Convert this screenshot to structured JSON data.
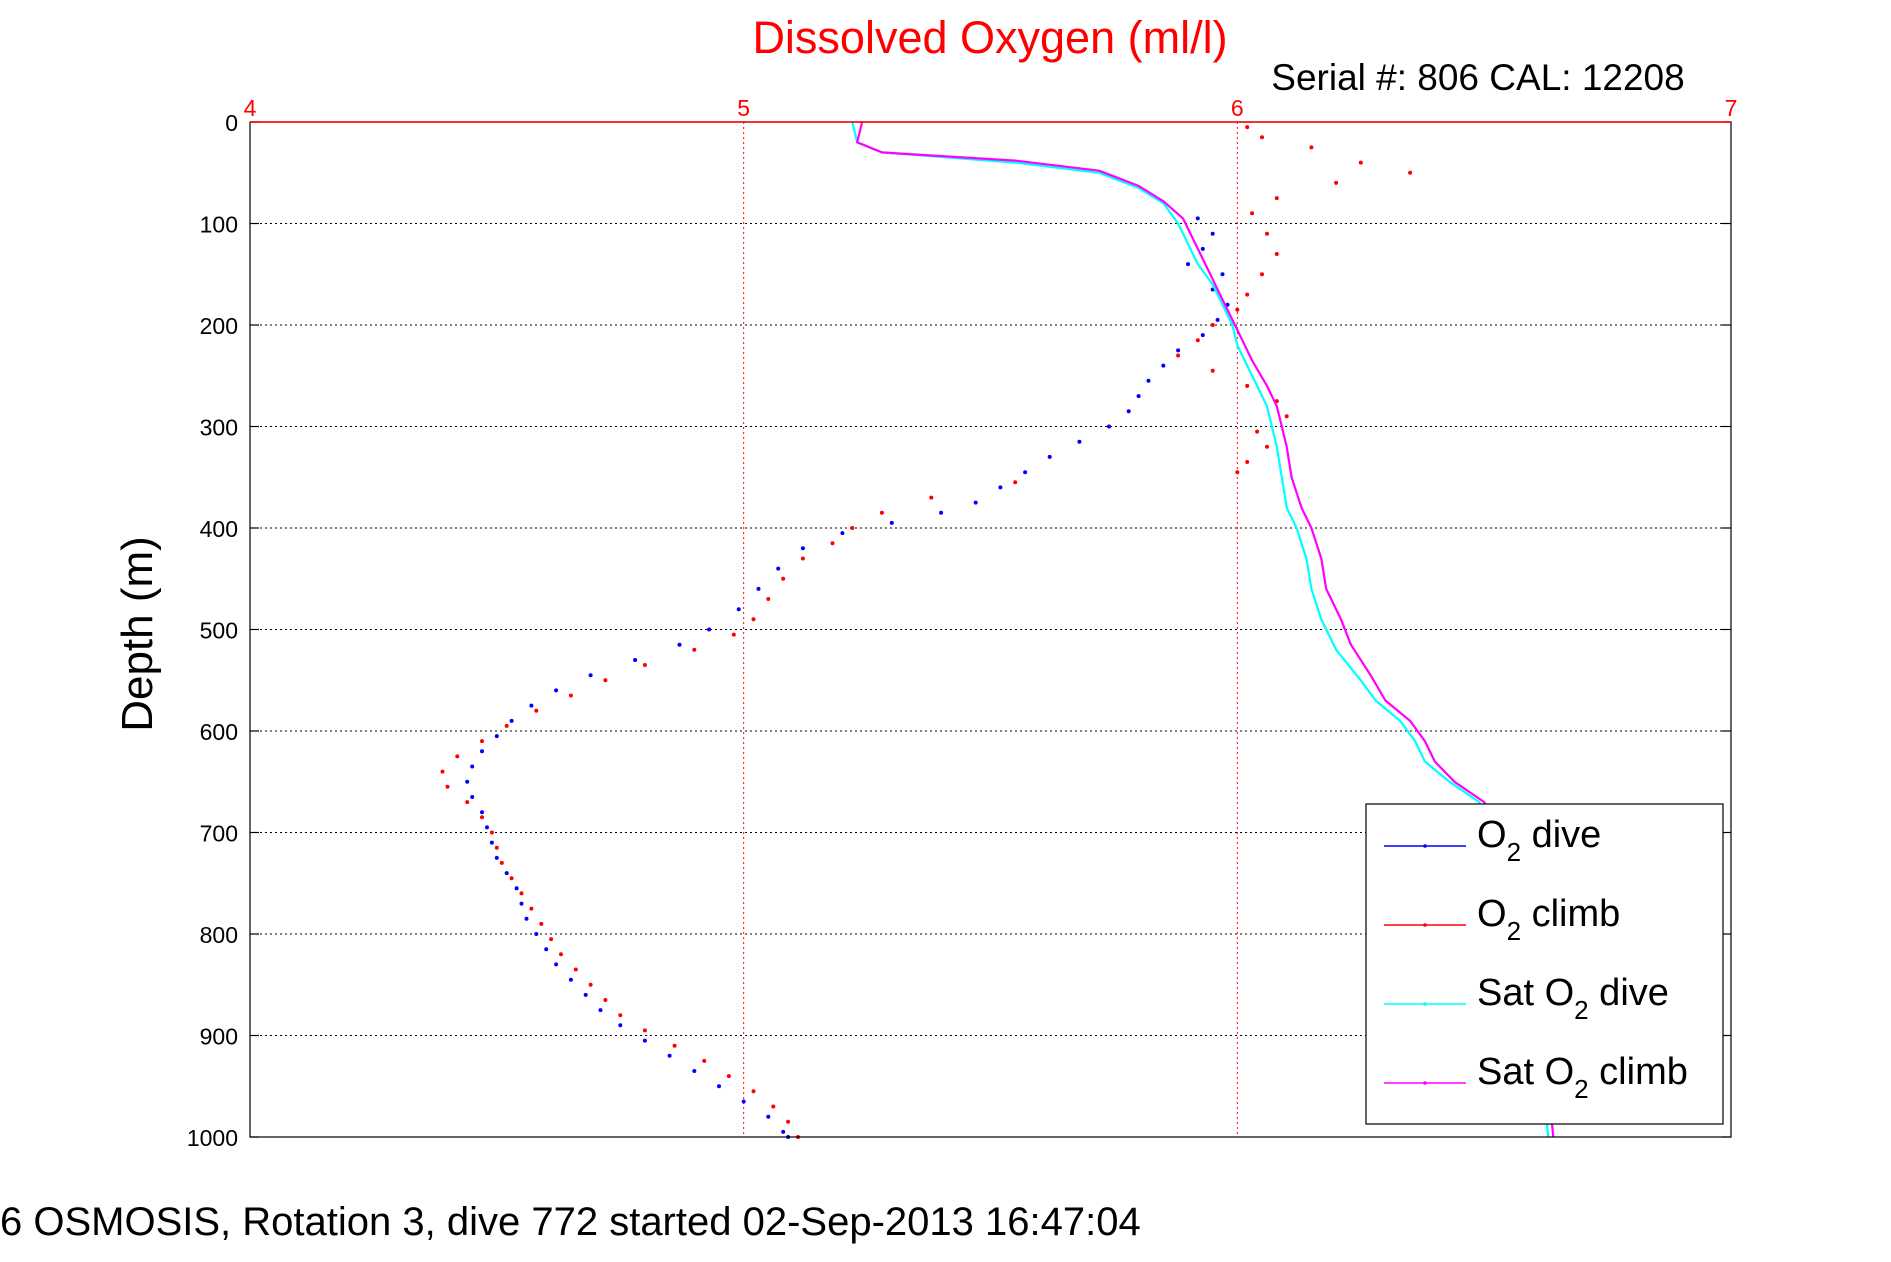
{
  "chart_data": {
    "type": "scatter",
    "title": "Dissolved Oxygen (ml/l)",
    "subtitle": "Serial #: 806  CAL: 12208",
    "ylabel": "Depth (m)",
    "xlim": [
      4,
      7
    ],
    "ylim": [
      0,
      1000
    ],
    "y_reversed": true,
    "x_axis_position": "top",
    "x_ticks": [
      "4",
      "5",
      "6",
      "7"
    ],
    "y_ticks": [
      "0",
      "100",
      "200",
      "300",
      "400",
      "500",
      "600",
      "700",
      "800",
      "900",
      "1000"
    ],
    "grid": true,
    "legend_position": "lower-right",
    "colors": {
      "title": "#ff0000",
      "x_axis": "#ff0000",
      "vgrid": "#ff0000",
      "hgrid": "#000000"
    },
    "series": [
      {
        "name": "O2 dive",
        "legend_main": "O",
        "legend_sub": "2",
        "legend_rest": " dive",
        "color": "#0000ff",
        "style": "markers",
        "points": [
          [
            5.92,
            95
          ],
          [
            5.95,
            110
          ],
          [
            5.93,
            125
          ],
          [
            5.9,
            140
          ],
          [
            5.97,
            150
          ],
          [
            5.95,
            165
          ],
          [
            5.98,
            180
          ],
          [
            5.96,
            195
          ],
          [
            5.93,
            210
          ],
          [
            5.88,
            225
          ],
          [
            5.85,
            240
          ],
          [
            5.82,
            255
          ],
          [
            5.8,
            270
          ],
          [
            5.78,
            285
          ],
          [
            5.74,
            300
          ],
          [
            5.68,
            315
          ],
          [
            5.62,
            330
          ],
          [
            5.57,
            345
          ],
          [
            5.52,
            360
          ],
          [
            5.47,
            375
          ],
          [
            5.4,
            385
          ],
          [
            5.3,
            395
          ],
          [
            5.2,
            405
          ],
          [
            5.12,
            420
          ],
          [
            5.07,
            440
          ],
          [
            5.03,
            460
          ],
          [
            4.99,
            480
          ],
          [
            4.93,
            500
          ],
          [
            4.87,
            515
          ],
          [
            4.78,
            530
          ],
          [
            4.69,
            545
          ],
          [
            4.62,
            560
          ],
          [
            4.57,
            575
          ],
          [
            4.53,
            590
          ],
          [
            4.5,
            605
          ],
          [
            4.47,
            620
          ],
          [
            4.45,
            635
          ],
          [
            4.44,
            650
          ],
          [
            4.45,
            665
          ],
          [
            4.47,
            680
          ],
          [
            4.48,
            695
          ],
          [
            4.49,
            710
          ],
          [
            4.5,
            725
          ],
          [
            4.52,
            740
          ],
          [
            4.54,
            755
          ],
          [
            4.55,
            770
          ],
          [
            4.56,
            785
          ],
          [
            4.58,
            800
          ],
          [
            4.6,
            815
          ],
          [
            4.62,
            830
          ],
          [
            4.65,
            845
          ],
          [
            4.68,
            860
          ],
          [
            4.71,
            875
          ],
          [
            4.75,
            890
          ],
          [
            4.8,
            905
          ],
          [
            4.85,
            920
          ],
          [
            4.9,
            935
          ],
          [
            4.95,
            950
          ],
          [
            5.0,
            965
          ],
          [
            5.05,
            980
          ],
          [
            5.08,
            995
          ],
          [
            5.09,
            1000
          ]
        ]
      },
      {
        "name": "O2 climb",
        "legend_main": "O",
        "legend_sub": "2",
        "legend_rest": " climb",
        "color": "#ff0000",
        "style": "markers",
        "points": [
          [
            6.02,
            5
          ],
          [
            6.05,
            15
          ],
          [
            6.15,
            25
          ],
          [
            6.25,
            40
          ],
          [
            6.35,
            50
          ],
          [
            6.2,
            60
          ],
          [
            6.08,
            75
          ],
          [
            6.03,
            90
          ],
          [
            6.06,
            110
          ],
          [
            6.08,
            130
          ],
          [
            6.05,
            150
          ],
          [
            6.02,
            170
          ],
          [
            6.0,
            185
          ],
          [
            5.95,
            200
          ],
          [
            5.92,
            215
          ],
          [
            5.88,
            230
          ],
          [
            5.95,
            245
          ],
          [
            6.02,
            260
          ],
          [
            6.08,
            275
          ],
          [
            6.1,
            290
          ],
          [
            6.04,
            305
          ],
          [
            6.06,
            320
          ],
          [
            6.02,
            335
          ],
          [
            6.0,
            345
          ],
          [
            5.55,
            355
          ],
          [
            5.38,
            370
          ],
          [
            5.28,
            385
          ],
          [
            5.22,
            400
          ],
          [
            5.18,
            415
          ],
          [
            5.12,
            430
          ],
          [
            5.08,
            450
          ],
          [
            5.05,
            470
          ],
          [
            5.02,
            490
          ],
          [
            4.98,
            505
          ],
          [
            4.9,
            520
          ],
          [
            4.8,
            535
          ],
          [
            4.72,
            550
          ],
          [
            4.65,
            565
          ],
          [
            4.58,
            580
          ],
          [
            4.52,
            595
          ],
          [
            4.47,
            610
          ],
          [
            4.42,
            625
          ],
          [
            4.39,
            640
          ],
          [
            4.4,
            655
          ],
          [
            4.44,
            670
          ],
          [
            4.47,
            685
          ],
          [
            4.49,
            700
          ],
          [
            4.5,
            715
          ],
          [
            4.51,
            730
          ],
          [
            4.53,
            745
          ],
          [
            4.55,
            760
          ],
          [
            4.57,
            775
          ],
          [
            4.59,
            790
          ],
          [
            4.61,
            805
          ],
          [
            4.63,
            820
          ],
          [
            4.66,
            835
          ],
          [
            4.69,
            850
          ],
          [
            4.72,
            865
          ],
          [
            4.75,
            880
          ],
          [
            4.8,
            895
          ],
          [
            4.86,
            910
          ],
          [
            4.92,
            925
          ],
          [
            4.97,
            940
          ],
          [
            5.02,
            955
          ],
          [
            5.06,
            970
          ],
          [
            5.09,
            985
          ],
          [
            5.11,
            1000
          ]
        ]
      },
      {
        "name": "Sat O2 dive",
        "legend_main": "Sat O",
        "legend_sub": "2",
        "legend_rest": " dive",
        "color": "#00ffff",
        "style": "line",
        "points": [
          [
            5.22,
            0
          ],
          [
            5.23,
            20
          ],
          [
            5.28,
            30
          ],
          [
            5.55,
            40
          ],
          [
            5.72,
            50
          ],
          [
            5.8,
            65
          ],
          [
            5.85,
            80
          ],
          [
            5.88,
            100
          ],
          [
            5.9,
            120
          ],
          [
            5.92,
            140
          ],
          [
            5.95,
            160
          ],
          [
            5.97,
            180
          ],
          [
            5.99,
            200
          ],
          [
            6.0,
            220
          ],
          [
            6.02,
            240
          ],
          [
            6.04,
            260
          ],
          [
            6.06,
            280
          ],
          [
            6.07,
            300
          ],
          [
            6.08,
            320
          ],
          [
            6.09,
            350
          ],
          [
            6.1,
            380
          ],
          [
            6.12,
            400
          ],
          [
            6.14,
            430
          ],
          [
            6.15,
            460
          ],
          [
            6.17,
            490
          ],
          [
            6.2,
            520
          ],
          [
            6.25,
            550
          ],
          [
            6.28,
            570
          ],
          [
            6.33,
            590
          ],
          [
            6.36,
            610
          ],
          [
            6.38,
            630
          ],
          [
            6.43,
            650
          ],
          [
            6.49,
            670
          ],
          [
            6.52,
            700
          ],
          [
            6.54,
            750
          ],
          [
            6.56,
            800
          ],
          [
            6.58,
            850
          ],
          [
            6.6,
            900
          ],
          [
            6.62,
            950
          ],
          [
            6.63,
            1000
          ]
        ]
      },
      {
        "name": "Sat O2 climb",
        "legend_main": "Sat O",
        "legend_sub": "2",
        "legend_rest": " climb",
        "color": "#ff00ff",
        "style": "line",
        "points": [
          [
            5.24,
            0
          ],
          [
            5.23,
            20
          ],
          [
            5.28,
            30
          ],
          [
            5.55,
            38
          ],
          [
            5.72,
            48
          ],
          [
            5.8,
            63
          ],
          [
            5.85,
            78
          ],
          [
            5.89,
            95
          ],
          [
            5.91,
            115
          ],
          [
            5.93,
            135
          ],
          [
            5.95,
            155
          ],
          [
            5.97,
            175
          ],
          [
            5.99,
            195
          ],
          [
            6.01,
            215
          ],
          [
            6.03,
            235
          ],
          [
            6.06,
            260
          ],
          [
            6.08,
            280
          ],
          [
            6.09,
            300
          ],
          [
            6.1,
            320
          ],
          [
            6.11,
            350
          ],
          [
            6.13,
            380
          ],
          [
            6.15,
            400
          ],
          [
            6.17,
            430
          ],
          [
            6.18,
            460
          ],
          [
            6.21,
            490
          ],
          [
            6.23,
            515
          ],
          [
            6.27,
            545
          ],
          [
            6.3,
            570
          ],
          [
            6.35,
            590
          ],
          [
            6.38,
            610
          ],
          [
            6.4,
            630
          ],
          [
            6.44,
            650
          ],
          [
            6.5,
            670
          ],
          [
            6.53,
            700
          ],
          [
            6.55,
            750
          ],
          [
            6.57,
            800
          ],
          [
            6.59,
            850
          ],
          [
            6.61,
            900
          ],
          [
            6.63,
            950
          ],
          [
            6.64,
            1000
          ]
        ]
      }
    ]
  },
  "footer": {
    "caption": "6 OSMOSIS, Rotation 3, dive 772 started 02-Sep-2013 16:47:04"
  }
}
